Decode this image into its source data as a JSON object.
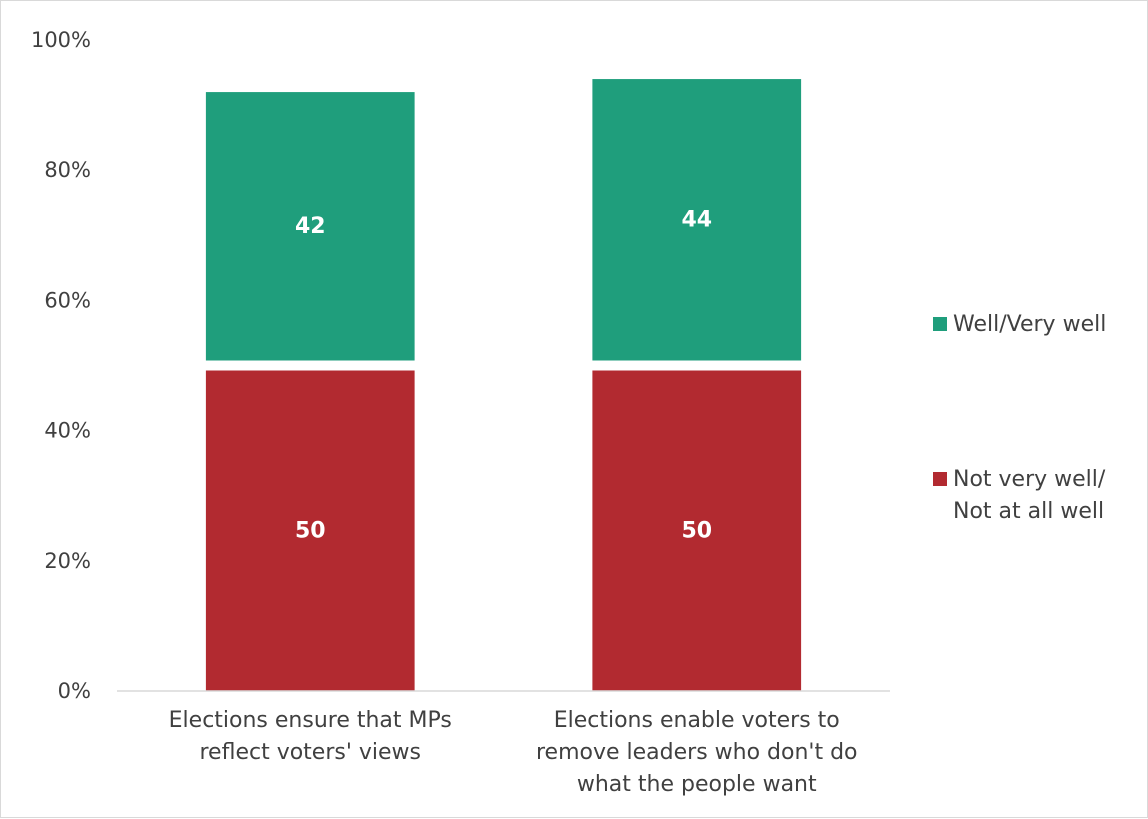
{
  "chart_data": {
    "type": "bar",
    "stacked": true,
    "categories": [
      "Elections ensure that MPs reflect voters' views",
      "Elections enable voters to remove leaders who don't do what the people want"
    ],
    "category_lines": [
      [
        "Elections ensure that MPs",
        "reflect voters' views"
      ],
      [
        "Elections enable voters to",
        "remove leaders who don't do",
        "what the people want"
      ]
    ],
    "series": [
      {
        "name": "Not very well/ Not at all well",
        "legend_lines": [
          "Not very well/",
          "Not at all well"
        ],
        "values": [
          50,
          50
        ],
        "color": "#b22a30"
      },
      {
        "name": "Well/Very well",
        "legend_lines": [
          "Well/Very well"
        ],
        "values": [
          42,
          44
        ],
        "color": "#1f9e7c"
      }
    ],
    "y_ticks": [
      "0%",
      "20%",
      "40%",
      "60%",
      "80%",
      "100%"
    ],
    "ylim": [
      0,
      100
    ],
    "legend_position": "right",
    "grid": false
  }
}
